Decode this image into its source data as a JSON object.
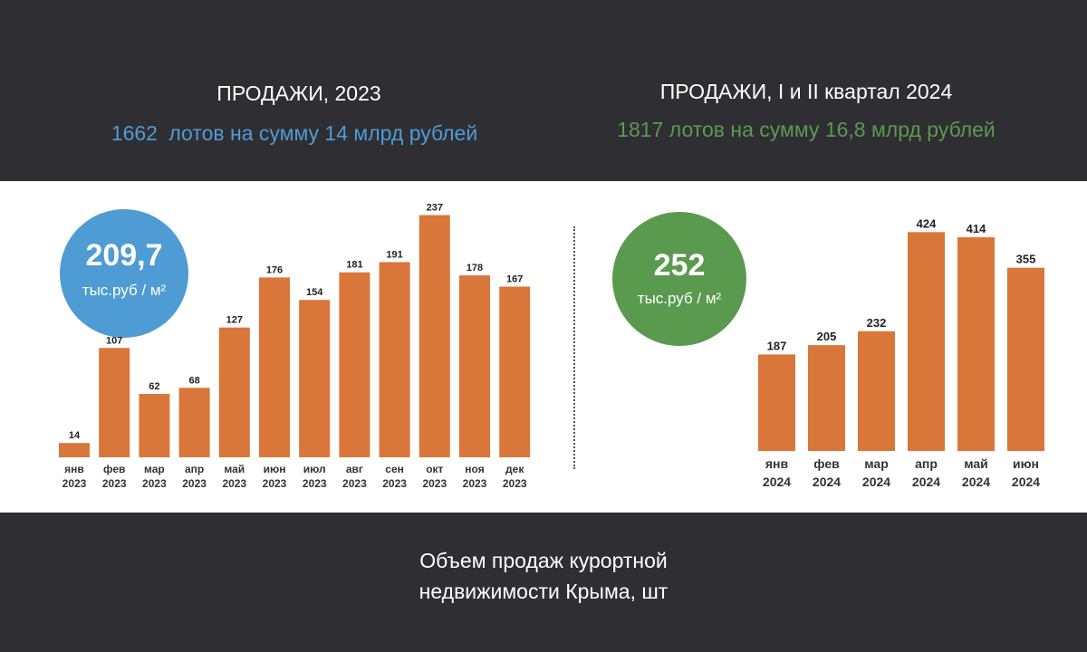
{
  "header": {
    "left": {
      "title": "ПРОДАЖИ, 2023",
      "subtitle_count": "1662",
      "subtitle_rest": "лотов на сумму 14 млрд рублей"
    },
    "right": {
      "title": "ПРОДАЖИ, I и II квартал 2024",
      "subtitle": "1817 лотов на сумму 16,8 млрд рублей"
    }
  },
  "badges": {
    "left": {
      "value": "209,7",
      "unit": "тыс.руб / м²"
    },
    "right": {
      "value": "252",
      "unit": "тыс.руб / м²"
    }
  },
  "caption": {
    "line1": "Объем продаж курортной",
    "line2": "недвижимости Крыма, шт"
  },
  "colors": {
    "bar": "#d9763a",
    "blue": "#4f9bd3",
    "green": "#5a9a4f",
    "dark": "#2f2e33"
  },
  "chart_data": [
    {
      "type": "bar",
      "categories": [
        "янв 2023",
        "фев 2023",
        "мар 2023",
        "апр 2023",
        "май 2023",
        "июн 2023",
        "июл 2023",
        "авг 2023",
        "сен 2023",
        "окт 2023",
        "ноя 2023",
        "дек 2023"
      ],
      "month_labels": [
        "янв",
        "фев",
        "мар",
        "апр",
        "май",
        "июн",
        "июл",
        "авг",
        "сен",
        "окт",
        "ноя",
        "дек"
      ],
      "year_label": "2023",
      "values": [
        14,
        107,
        62,
        68,
        127,
        176,
        154,
        181,
        191,
        237,
        178,
        167
      ],
      "data_labels": true,
      "grid": false
    },
    {
      "type": "bar",
      "categories": [
        "янв 2024",
        "фев 2024",
        "мар 2024",
        "апр 2024",
        "май 2024",
        "июн 2024"
      ],
      "month_labels": [
        "янв",
        "фев",
        "мар",
        "апр",
        "май",
        "июн"
      ],
      "year_label": "2024",
      "values": [
        187,
        205,
        232,
        424,
        414,
        355
      ],
      "data_labels": true,
      "grid": false
    }
  ]
}
